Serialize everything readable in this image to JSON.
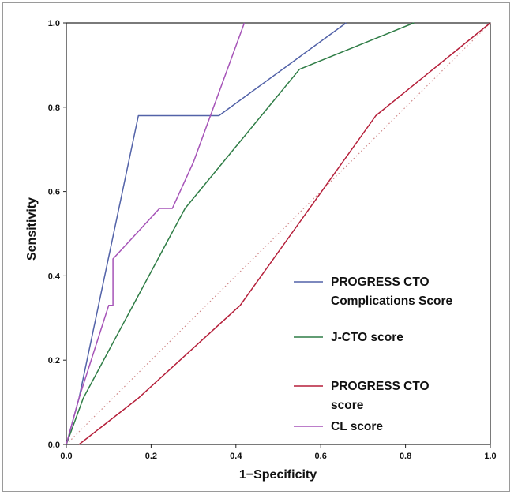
{
  "chart_data": {
    "type": "line",
    "title": "",
    "xlabel": "1−Specificity",
    "ylabel": "Sensitivity",
    "xlim": [
      0,
      1
    ],
    "ylim": [
      0,
      1
    ],
    "x_ticks": [
      "0.0",
      "0.2",
      "0.4",
      "0.6",
      "0.8",
      "1.0"
    ],
    "y_ticks": [
      "0.0",
      "0.2",
      "0.4",
      "0.6",
      "0.8",
      "1.0"
    ],
    "grid": false,
    "legend_position": "bottom-right",
    "reference_line": {
      "x": [
        0,
        1
      ],
      "y": [
        0,
        1
      ],
      "color": "#d08888",
      "style": "dotted"
    },
    "series": [
      {
        "name": "PROGRESS CTO Complications Score",
        "legend_lines": [
          "PROGRESS CTO",
          "Complications Score"
        ],
        "color": "#5262a8",
        "x": [
          0,
          0.03,
          0.17,
          0.36,
          0.66
        ],
        "y": [
          0,
          0.11,
          0.78,
          0.78,
          1.0
        ]
      },
      {
        "name": "J-CTO score",
        "legend_lines": [
          "J-CTO score"
        ],
        "color": "#2f7d46",
        "x": [
          0,
          0.04,
          0.28,
          0.55,
          0.82
        ],
        "y": [
          0,
          0.11,
          0.56,
          0.89,
          1.0
        ]
      },
      {
        "name": "PROGRESS CTO score",
        "legend_lines": [
          "PROGRESS CTO",
          "score"
        ],
        "color": "#b51f3a",
        "x": [
          0.03,
          0.17,
          0.41,
          0.73,
          1.0
        ],
        "y": [
          0,
          0.11,
          0.33,
          0.78,
          1.0
        ]
      },
      {
        "name": "CL score",
        "legend_lines": [
          "CL score"
        ],
        "color": "#a654b8",
        "x": [
          0,
          0.03,
          0.1,
          0.11,
          0.11,
          0.22,
          0.25,
          0.3,
          0.42
        ],
        "y": [
          0,
          0.11,
          0.33,
          0.33,
          0.44,
          0.56,
          0.56,
          0.67,
          1.0
        ]
      }
    ]
  }
}
